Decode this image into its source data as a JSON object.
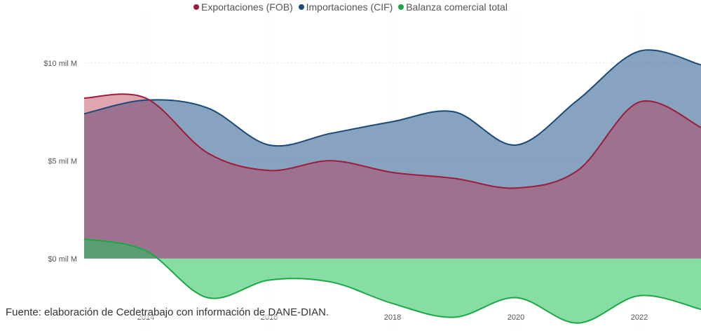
{
  "source_note": "Fuente: elaboración de Cedetrabajo con información de DANE-DIAN.",
  "colors": {
    "exports": "#9b1c3c",
    "imports": "#1a4a7a",
    "balance": "#1aa845"
  },
  "chart_data": {
    "type": "area",
    "title": "",
    "xlabel": "",
    "ylabel": "",
    "x": [
      2013,
      2014,
      2015,
      2016,
      2017,
      2018,
      2019,
      2020,
      2021,
      2022,
      2023
    ],
    "xlim": [
      2013,
      2023
    ],
    "ylim": [
      -3.7,
      12.5
    ],
    "x_ticks": [
      {
        "value": 2014,
        "label": "2014"
      },
      {
        "value": 2016,
        "label": "2016"
      },
      {
        "value": 2018,
        "label": "2018"
      },
      {
        "value": 2020,
        "label": "2020"
      },
      {
        "value": 2022,
        "label": "2022"
      }
    ],
    "y_ticks": [
      {
        "value": 0,
        "label": "$0 mil M"
      },
      {
        "value": 5,
        "label": "$5 mil M"
      },
      {
        "value": 10,
        "label": "$10 mil M"
      }
    ],
    "grid": true,
    "legend_position": "top-center",
    "series": [
      {
        "name": "Exportaciones (FOB)",
        "color": "#9b1c3c",
        "values": [
          8.2,
          8.2,
          5.4,
          4.5,
          5.0,
          4.4,
          4.1,
          3.6,
          4.5,
          8.0,
          6.7
        ]
      },
      {
        "name": "Importaciones (CIF)",
        "color": "#1a4a7a",
        "values": [
          7.4,
          8.1,
          7.7,
          5.8,
          6.4,
          7.0,
          7.5,
          5.8,
          8.1,
          10.6,
          9.9
        ]
      },
      {
        "name": "Balanza comercial total",
        "color": "#1aa845",
        "values": [
          1.0,
          0.4,
          -2.0,
          -1.1,
          -1.2,
          -2.3,
          -3.0,
          -2.0,
          -3.3,
          -1.9,
          -2.6
        ]
      }
    ]
  }
}
